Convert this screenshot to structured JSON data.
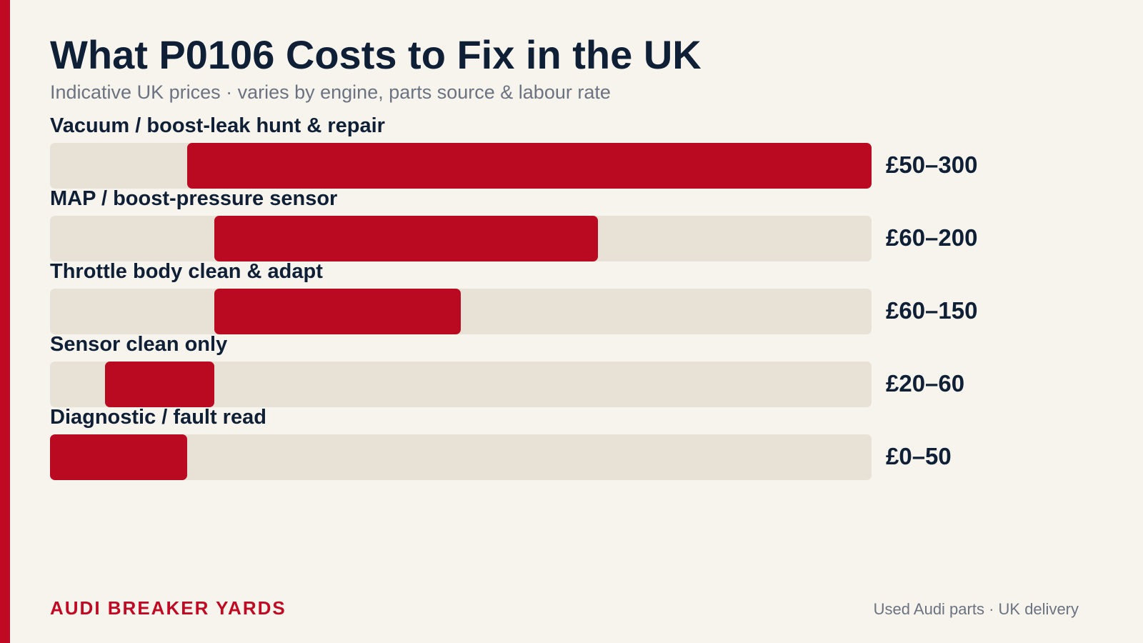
{
  "chart_data": {
    "type": "bar",
    "orientation": "horizontal-range",
    "title": "What P0106 Costs to Fix in the UK",
    "subtitle": "Indicative UK prices · varies by engine, parts source & labour rate",
    "xlim": [
      0,
      300
    ],
    "currency": "£",
    "categories": [
      "Vacuum / boost-leak hunt & repair",
      "MAP / boost-pressure sensor",
      "Throttle body clean & adapt",
      "Sensor clean only",
      "Diagnostic / fault read"
    ],
    "ranges": [
      [
        50,
        300
      ],
      [
        60,
        200
      ],
      [
        60,
        150
      ],
      [
        20,
        60
      ],
      [
        0,
        50
      ]
    ],
    "value_labels": [
      "£50–300",
      "£60–200",
      "£60–150",
      "£20–60",
      "£0–50"
    ],
    "grid": false,
    "legend": "none",
    "colors": {
      "bar": "#b90a22",
      "track": "#e8e1d6",
      "accent": "#c00a24",
      "text": "#0f2036",
      "muted": "#6b7280",
      "background": "#f7f4ee"
    }
  },
  "footer": {
    "brand": "AUDI BREAKER YARDS",
    "tagline": "Used Audi parts · UK delivery"
  }
}
